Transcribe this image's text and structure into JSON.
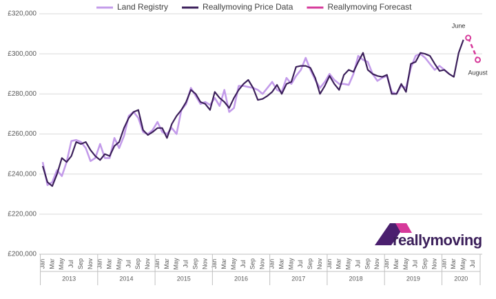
{
  "chart_data": {
    "type": "line",
    "categories": [
      "Jan",
      null,
      "Mar",
      null,
      "May",
      null,
      "Jul",
      null,
      "Sep",
      null,
      "Nov",
      null,
      "Jan",
      null,
      "Mar",
      null,
      "May",
      null,
      "Jul",
      null,
      "Sep",
      null,
      "Nov",
      null,
      "Jan",
      null,
      "Mar",
      null,
      "May",
      null,
      "Jul",
      null,
      "Sep",
      null,
      "Nov",
      null,
      "Jan",
      null,
      "Mar",
      null,
      "May",
      null,
      "Jul",
      null,
      "Sep",
      null,
      "Nov",
      null,
      "Jan",
      null,
      "Mar",
      null,
      "May",
      null,
      "Jul",
      null,
      "Sep",
      null,
      "Nov",
      null,
      "Jan",
      null,
      "Mar",
      null,
      "May",
      null,
      "Jul",
      null,
      "Sep",
      null,
      "Nov",
      null,
      "Jan",
      null,
      "Mar",
      null,
      "May",
      null,
      "Jul",
      null,
      "Sep",
      null,
      "Nov",
      null,
      "Jan",
      null,
      "Mar",
      null,
      "May",
      null,
      "Jul",
      null
    ],
    "years": [
      "2013",
      "2014",
      "2015",
      "2016",
      "2017",
      "2018",
      "2019",
      "2020"
    ],
    "series": [
      {
        "name": "Land Registry",
        "color": "#c39bea",
        "dash": false,
        "values": [
          246000,
          234500,
          236000,
          242000,
          239000,
          246000,
          256500,
          257000,
          256000,
          253000,
          246500,
          248000,
          255000,
          248000,
          248000,
          258000,
          253000,
          259000,
          269000,
          271000,
          268000,
          261000,
          260000,
          262000,
          266000,
          261000,
          260000,
          263000,
          260000,
          272000,
          275000,
          283000,
          279000,
          275000,
          276000,
          274500,
          278000,
          274000,
          282000,
          271000,
          273000,
          284000,
          284000,
          283500,
          283000,
          282000,
          280000,
          283000,
          286000,
          282000,
          281000,
          288000,
          285000,
          289000,
          292000,
          298000,
          292000,
          287000,
          283000,
          286000,
          290000,
          287000,
          285000,
          285000,
          284500,
          290000,
          299000,
          297000,
          296000,
          290000,
          286500,
          288000,
          289000,
          281000,
          280000,
          284000,
          283000,
          293000,
          299000,
          300000,
          298000,
          295000,
          292000,
          294000,
          292000,
          290000,
          null,
          null,
          null,
          null,
          null,
          null
        ]
      },
      {
        "name": "Reallymoving Price Data",
        "color": "#3b1f5a",
        "dash": false,
        "values": [
          244000,
          236000,
          234000,
          240000,
          248000,
          246000,
          249000,
          256000,
          255000,
          256000,
          252000,
          249000,
          247000,
          250000,
          249000,
          254000,
          256000,
          263000,
          268000,
          271000,
          272000,
          262000,
          259500,
          261000,
          263000,
          263000,
          258000,
          265000,
          269000,
          272000,
          276000,
          282000,
          280000,
          276000,
          275000,
          272000,
          281000,
          278000,
          276000,
          273000,
          278000,
          282000,
          285000,
          287000,
          283000,
          277000,
          277500,
          279000,
          281000,
          284500,
          280000,
          285000,
          286000,
          293500,
          294000,
          294000,
          293000,
          288000,
          280000,
          284000,
          289000,
          285000,
          282000,
          289500,
          292000,
          291000,
          296000,
          300500,
          292000,
          290000,
          289000,
          288500,
          289500,
          280000,
          280000,
          285000,
          281000,
          295000,
          296000,
          300500,
          300000,
          299000,
          295000,
          291500,
          292000,
          290000,
          288500,
          300500,
          307000,
          null,
          null,
          null
        ]
      },
      {
        "name": "Reallymoving Forecast",
        "color": "#d6399a",
        "dash": true,
        "values": [
          null,
          null,
          null,
          null,
          null,
          null,
          null,
          null,
          null,
          null,
          null,
          null,
          null,
          null,
          null,
          null,
          null,
          null,
          null,
          null,
          null,
          null,
          null,
          null,
          null,
          null,
          null,
          null,
          null,
          null,
          null,
          null,
          null,
          null,
          null,
          null,
          null,
          null,
          null,
          null,
          null,
          null,
          null,
          null,
          null,
          null,
          null,
          null,
          null,
          null,
          null,
          null,
          null,
          null,
          null,
          null,
          null,
          null,
          null,
          null,
          null,
          null,
          null,
          null,
          null,
          null,
          null,
          null,
          null,
          null,
          null,
          null,
          null,
          null,
          null,
          null,
          null,
          null,
          null,
          null,
          null,
          null,
          null,
          null,
          null,
          null,
          null,
          null,
          null,
          308000,
          302500,
          297000
        ]
      }
    ],
    "annotations": [
      {
        "text": "June",
        "index": 89
      },
      {
        "text": "August",
        "index": 91
      }
    ],
    "ylim": [
      200000,
      320000
    ],
    "yticks": [
      {
        "value": 200000,
        "label": "£200,000"
      },
      {
        "value": 220000,
        "label": "£220,000"
      },
      {
        "value": 240000,
        "label": "£240,000"
      },
      {
        "value": 260000,
        "label": "£260,000"
      },
      {
        "value": 280000,
        "label": "£280,000"
      },
      {
        "value": 300000,
        "label": "£300,000"
      },
      {
        "value": 320000,
        "label": "£320,000"
      }
    ],
    "grid": true,
    "legend": "top",
    "logo_text": "reallymoving"
  }
}
